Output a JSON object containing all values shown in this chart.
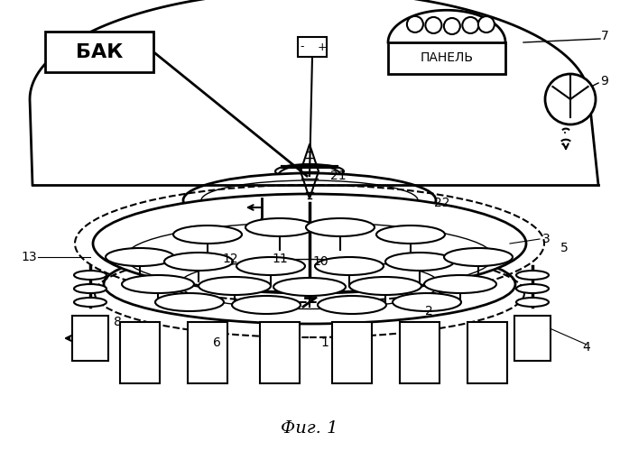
{
  "title": "Фиг. 1",
  "bg_color": "#ffffff",
  "line_color": "#000000",
  "fig_width": 6.87,
  "fig_height": 5.0,
  "labels": {
    "BAK": "БАК",
    "PANEL": "ПАНЕЛЬ",
    "fig": "Фиг. 1"
  },
  "numbers": [
    "1",
    "2",
    "3",
    "4",
    "5",
    "6",
    "7",
    "8",
    "9",
    "10",
    "11",
    "12",
    "13",
    "21",
    "22"
  ]
}
